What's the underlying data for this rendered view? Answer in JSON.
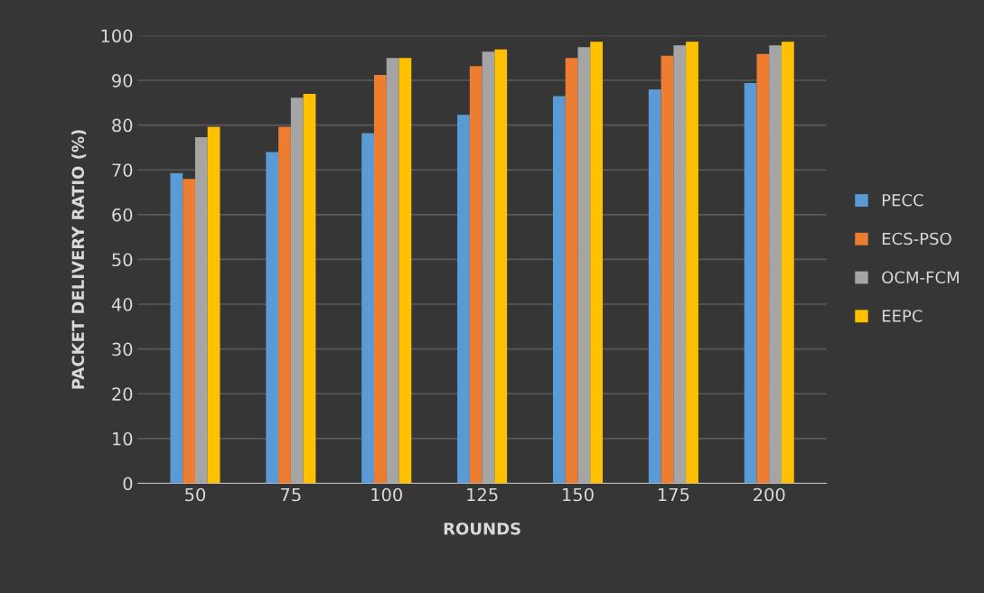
{
  "chart_data": {
    "type": "bar",
    "xlabel": "ROUNDS",
    "ylabel": "PACKET DELIVERY RATIO (%)",
    "categories": [
      "50",
      "75",
      "100",
      "125",
      "150",
      "175",
      "200"
    ],
    "series": [
      {
        "name": "PECC",
        "color": "#5b9bd5",
        "values": [
          69.3,
          74,
          78.2,
          82.3,
          86.5,
          88,
          89.4
        ]
      },
      {
        "name": "ECS-PSO",
        "color": "#ed7d31",
        "values": [
          68,
          79.6,
          91.2,
          93.2,
          95,
          95.5,
          95.9
        ]
      },
      {
        "name": "OCM-FCM",
        "color": "#a5a5a5",
        "values": [
          77.3,
          86.1,
          95,
          96.4,
          97.4,
          97.8,
          97.8
        ]
      },
      {
        "name": "EEPC",
        "color": "#ffc000",
        "values": [
          79.6,
          87,
          95,
          96.9,
          98.6,
          98.6,
          98.6
        ]
      }
    ],
    "ylim": [
      0,
      100
    ],
    "yticks": [
      0,
      10,
      20,
      30,
      40,
      50,
      60,
      70,
      80,
      90,
      100
    ],
    "grid": "y",
    "legend": "right"
  }
}
